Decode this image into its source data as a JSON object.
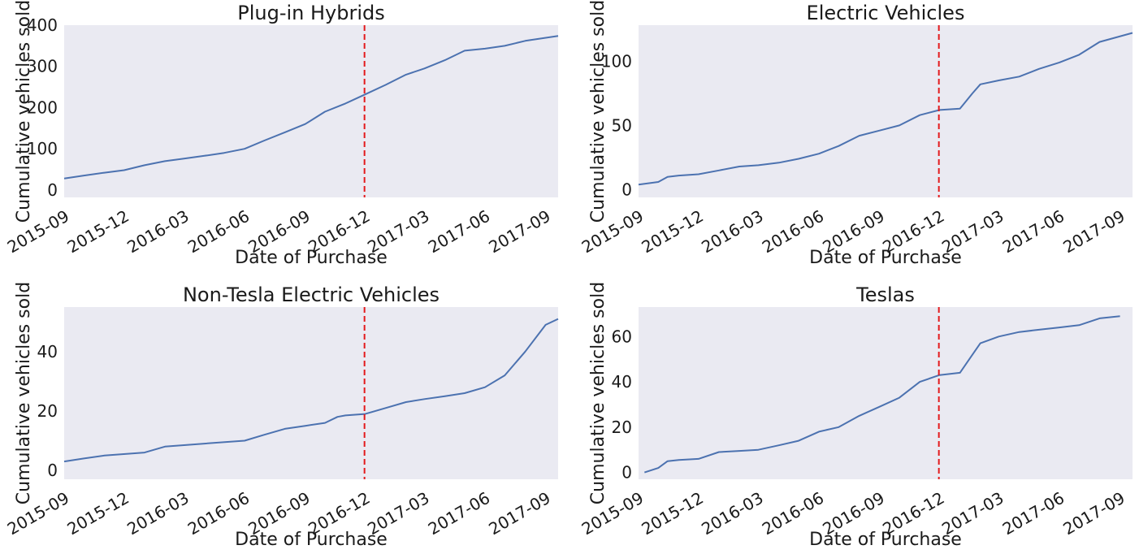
{
  "colors": {
    "plot_bg": "#eaeaf2",
    "series": "#4c72b0",
    "marker_line": "#e31a1c"
  },
  "chart_data": [
    {
      "type": "line",
      "title": "Plug-in Hybrids",
      "xlabel": "Date of Purchase",
      "ylabel": "Cumulative vehicles sold",
      "xlim": [
        "2015-09-01",
        "2017-09-20"
      ],
      "ylim": [
        -18,
        400
      ],
      "xticks": [
        "2015-09",
        "2015-12",
        "2016-03",
        "2016-06",
        "2016-09",
        "2016-12",
        "2017-03",
        "2017-06",
        "2017-09"
      ],
      "yticks": [
        0,
        100,
        200,
        300,
        400
      ],
      "grid": false,
      "vline": {
        "x": "2016-11-30",
        "style": "dashed",
        "color": "red"
      },
      "series": [
        {
          "x": [
            "2015-09-01",
            "2015-10-01",
            "2015-11-01",
            "2015-12-01",
            "2016-01-01",
            "2016-02-01",
            "2016-03-01",
            "2016-04-01",
            "2016-05-01",
            "2016-06-01",
            "2016-07-01",
            "2016-08-01",
            "2016-09-01",
            "2016-10-01",
            "2016-11-01",
            "2016-12-01",
            "2017-01-01",
            "2017-02-01",
            "2017-03-01",
            "2017-04-01",
            "2017-05-01",
            "2017-06-01",
            "2017-07-01",
            "2017-08-01",
            "2017-09-20"
          ],
          "values": [
            28,
            35,
            42,
            48,
            60,
            70,
            76,
            83,
            90,
            100,
            120,
            140,
            160,
            190,
            210,
            232,
            255,
            280,
            295,
            315,
            338,
            343,
            350,
            362,
            374
          ]
        }
      ]
    },
    {
      "type": "line",
      "title": "Electric Vehicles",
      "xlabel": "Date of Purchase",
      "ylabel": "Cumulative vehicles sold",
      "xlim": [
        "2015-09-01",
        "2017-09-20"
      ],
      "ylim": [
        -6,
        128
      ],
      "xticks": [
        "2015-09",
        "2015-12",
        "2016-03",
        "2016-06",
        "2016-09",
        "2016-12",
        "2017-03",
        "2017-06",
        "2017-09"
      ],
      "yticks": [
        0,
        50,
        100
      ],
      "grid": false,
      "vline": {
        "x": "2016-11-30",
        "style": "dashed",
        "color": "red"
      },
      "series": [
        {
          "x": [
            "2015-09-01",
            "2015-10-01",
            "2015-10-15",
            "2015-11-01",
            "2015-12-01",
            "2016-01-01",
            "2016-02-01",
            "2016-03-01",
            "2016-04-01",
            "2016-05-01",
            "2016-06-01",
            "2016-07-01",
            "2016-08-01",
            "2016-09-01",
            "2016-10-01",
            "2016-11-01",
            "2016-12-01",
            "2017-01-01",
            "2017-01-20",
            "2017-02-01",
            "2017-03-01",
            "2017-04-01",
            "2017-05-01",
            "2017-06-01",
            "2017-07-01",
            "2017-08-01",
            "2017-09-20"
          ],
          "values": [
            4,
            6,
            10,
            11,
            12,
            15,
            18,
            19,
            21,
            24,
            28,
            34,
            42,
            46,
            50,
            58,
            62,
            63,
            75,
            82,
            85,
            88,
            94,
            99,
            105,
            115,
            122
          ]
        }
      ]
    },
    {
      "type": "line",
      "title": "Non-Tesla Electric Vehicles",
      "xlabel": "Date of Purchase",
      "ylabel": "Cumulative vehicles sold",
      "xlim": [
        "2015-09-01",
        "2017-09-20"
      ],
      "ylim": [
        -3,
        55
      ],
      "xticks": [
        "2015-09",
        "2015-12",
        "2016-03",
        "2016-06",
        "2016-09",
        "2016-12",
        "2017-03",
        "2017-06",
        "2017-09"
      ],
      "yticks": [
        0,
        20,
        40
      ],
      "grid": false,
      "vline": {
        "x": "2016-11-30",
        "style": "dashed",
        "color": "red"
      },
      "series": [
        {
          "x": [
            "2015-09-01",
            "2015-10-01",
            "2015-11-01",
            "2016-01-01",
            "2016-02-01",
            "2016-04-01",
            "2016-06-01",
            "2016-07-01",
            "2016-08-01",
            "2016-09-01",
            "2016-10-01",
            "2016-10-20",
            "2016-11-01",
            "2016-12-01",
            "2017-01-01",
            "2017-02-01",
            "2017-03-01",
            "2017-04-01",
            "2017-05-01",
            "2017-06-01",
            "2017-07-01",
            "2017-08-01",
            "2017-09-01",
            "2017-09-20"
          ],
          "values": [
            3,
            4,
            5,
            6,
            8,
            9,
            10,
            12,
            14,
            15,
            16,
            18,
            18.5,
            19,
            21,
            23,
            24,
            25,
            26,
            28,
            32,
            40,
            49,
            51
          ]
        }
      ]
    },
    {
      "type": "line",
      "title": "Teslas",
      "xlabel": "Date of Purchase",
      "ylabel": "Cumulative vehicles sold",
      "xlim": [
        "2015-09-01",
        "2017-09-20"
      ],
      "ylim": [
        -3,
        73
      ],
      "xticks": [
        "2015-09",
        "2015-12",
        "2016-03",
        "2016-06",
        "2016-09",
        "2016-12",
        "2017-03",
        "2017-06",
        "2017-09"
      ],
      "yticks": [
        0,
        20,
        40,
        60
      ],
      "grid": false,
      "vline": {
        "x": "2016-11-30",
        "style": "dashed",
        "color": "red"
      },
      "series": [
        {
          "x": [
            "2015-09-10",
            "2015-10-01",
            "2015-10-15",
            "2015-11-01",
            "2015-12-01",
            "2016-01-01",
            "2016-02-01",
            "2016-03-01",
            "2016-04-01",
            "2016-05-01",
            "2016-06-01",
            "2016-07-01",
            "2016-08-01",
            "2016-09-01",
            "2016-10-01",
            "2016-11-01",
            "2016-12-01",
            "2017-01-01",
            "2017-01-20",
            "2017-02-01",
            "2017-03-01",
            "2017-04-01",
            "2017-05-01",
            "2017-06-01",
            "2017-07-01",
            "2017-08-01",
            "2017-09-01"
          ],
          "values": [
            0,
            2,
            5,
            5.5,
            6,
            9,
            9.5,
            10,
            12,
            14,
            18,
            20,
            25,
            29,
            33,
            40,
            43,
            44,
            52,
            57,
            60,
            62,
            63,
            64,
            65,
            68,
            69
          ]
        }
      ]
    }
  ]
}
